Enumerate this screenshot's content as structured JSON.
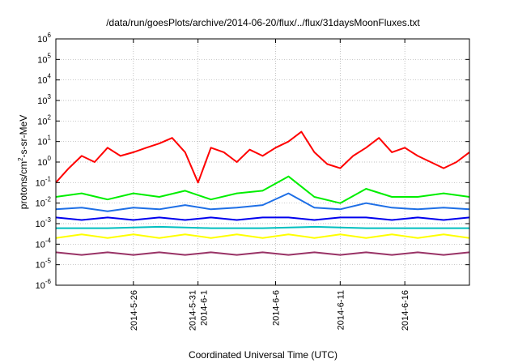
{
  "chart_data": {
    "type": "line",
    "title": "/data/run/goesPlots/archive/2014-06-20/flux/../flux/31daysMoonFluxes.txt",
    "xlabel": "Coordinated Universal Time (UTC)",
    "ylabel": "protons/cm2-s-sr-MeV",
    "ylabel_parts": [
      "protons/cm",
      "2",
      "-s-sr-MeV"
    ],
    "yscale": "log",
    "ylim": [
      1e-06,
      1000000.0
    ],
    "y_ticks": [
      {
        "base": "10",
        "exp": "-6",
        "value": -6
      },
      {
        "base": "10",
        "exp": "-5",
        "value": -5
      },
      {
        "base": "10",
        "exp": "-4",
        "value": -4
      },
      {
        "base": "10",
        "exp": "-3",
        "value": -3
      },
      {
        "base": "10",
        "exp": "-2",
        "value": -2
      },
      {
        "base": "10",
        "exp": "-1",
        "value": -1
      },
      {
        "base": "10",
        "exp": "0",
        "value": 0
      },
      {
        "base": "10",
        "exp": "1",
        "value": 1
      },
      {
        "base": "10",
        "exp": "2",
        "value": 2
      },
      {
        "base": "10",
        "exp": "3",
        "value": 3
      },
      {
        "base": "10",
        "exp": "4",
        "value": 4
      },
      {
        "base": "10",
        "exp": "5",
        "value": 5
      },
      {
        "base": "10",
        "exp": "6",
        "value": 6
      }
    ],
    "xlim": [
      "2014-05-20",
      "2014-06-21"
    ],
    "x_ticks": [
      {
        "date": "2014-05-26",
        "labels": [
          "2014-5-26"
        ]
      },
      {
        "date": "2014-05-31",
        "labels": [
          "2014-5-31",
          "2014-6-1"
        ]
      },
      {
        "date": "2014-06-06",
        "labels": [
          "2014-6-6"
        ]
      },
      {
        "date": "2014-06-11",
        "labels": [
          "2014-6-11"
        ]
      },
      {
        "date": "2014-06-16",
        "labels": [
          "2014-6-16"
        ]
      }
    ],
    "grid": true,
    "series": [
      {
        "color": "#ff0000",
        "x": [
          "2014-05-20",
          "2014-05-21",
          "2014-05-22",
          "2014-05-23",
          "2014-05-24",
          "2014-05-25",
          "2014-05-26",
          "2014-05-27",
          "2014-05-28",
          "2014-05-29",
          "2014-05-30",
          "2014-05-31",
          "2014-06-01",
          "2014-06-02",
          "2014-06-03",
          "2014-06-04",
          "2014-06-05",
          "2014-06-06",
          "2014-06-07",
          "2014-06-08",
          "2014-06-09",
          "2014-06-10",
          "2014-06-11",
          "2014-06-12",
          "2014-06-13",
          "2014-06-14",
          "2014-06-15",
          "2014-06-16",
          "2014-06-17",
          "2014-06-18",
          "2014-06-19",
          "2014-06-20",
          "2014-06-21"
        ],
        "values": [
          0.1,
          0.5,
          2,
          1,
          5,
          2,
          3,
          5,
          8,
          15,
          3,
          0.1,
          5,
          3,
          1,
          4,
          2,
          5,
          10,
          30,
          3,
          0.8,
          0.5,
          2,
          5,
          15,
          3,
          5,
          2,
          1,
          0.5,
          1,
          3
        ]
      },
      {
        "color": "#00ee00",
        "x": [
          "2014-05-20",
          "2014-05-22",
          "2014-05-24",
          "2014-05-26",
          "2014-05-28",
          "2014-05-30",
          "2014-06-01",
          "2014-06-03",
          "2014-06-05",
          "2014-06-07",
          "2014-06-09",
          "2014-06-11",
          "2014-06-13",
          "2014-06-15",
          "2014-06-17",
          "2014-06-19",
          "2014-06-21"
        ],
        "values": [
          0.02,
          0.03,
          0.015,
          0.03,
          0.02,
          0.04,
          0.015,
          0.03,
          0.04,
          0.2,
          0.02,
          0.01,
          0.05,
          0.02,
          0.02,
          0.03,
          0.02
        ]
      },
      {
        "color": "#1e6fe6",
        "x": [
          "2014-05-20",
          "2014-05-22",
          "2014-05-24",
          "2014-05-26",
          "2014-05-28",
          "2014-05-30",
          "2014-06-01",
          "2014-06-03",
          "2014-06-05",
          "2014-06-07",
          "2014-06-09",
          "2014-06-11",
          "2014-06-13",
          "2014-06-15",
          "2014-06-17",
          "2014-06-19",
          "2014-06-21"
        ],
        "values": [
          0.005,
          0.006,
          0.004,
          0.006,
          0.005,
          0.008,
          0.005,
          0.006,
          0.008,
          0.03,
          0.006,
          0.005,
          0.01,
          0.006,
          0.005,
          0.006,
          0.005
        ]
      },
      {
        "color": "#0000ee",
        "x": [
          "2014-05-20",
          "2014-05-22",
          "2014-05-24",
          "2014-05-26",
          "2014-05-28",
          "2014-05-30",
          "2014-06-01",
          "2014-06-03",
          "2014-06-05",
          "2014-06-07",
          "2014-06-09",
          "2014-06-11",
          "2014-06-13",
          "2014-06-15",
          "2014-06-17",
          "2014-06-19",
          "2014-06-21"
        ],
        "values": [
          0.002,
          0.0015,
          0.002,
          0.0015,
          0.002,
          0.0015,
          0.002,
          0.0015,
          0.002,
          0.002,
          0.0015,
          0.002,
          0.002,
          0.0015,
          0.002,
          0.0015,
          0.002
        ]
      },
      {
        "color": "#00bfbf",
        "x": [
          "2014-05-20",
          "2014-05-24",
          "2014-05-28",
          "2014-06-01",
          "2014-06-05",
          "2014-06-09",
          "2014-06-13",
          "2014-06-17",
          "2014-06-21"
        ],
        "values": [
          0.0006,
          0.0006,
          0.0007,
          0.0006,
          0.0006,
          0.0007,
          0.0006,
          0.0006,
          0.0006
        ]
      },
      {
        "color": "#ffff00",
        "x": [
          "2014-05-20",
          "2014-05-22",
          "2014-05-24",
          "2014-05-26",
          "2014-05-28",
          "2014-05-30",
          "2014-06-01",
          "2014-06-03",
          "2014-06-05",
          "2014-06-07",
          "2014-06-09",
          "2014-06-11",
          "2014-06-13",
          "2014-06-15",
          "2014-06-17",
          "2014-06-19",
          "2014-06-21"
        ],
        "values": [
          0.0002,
          0.0003,
          0.0002,
          0.0003,
          0.0002,
          0.0003,
          0.0002,
          0.0003,
          0.0002,
          0.0003,
          0.0002,
          0.0003,
          0.0002,
          0.0003,
          0.0002,
          0.0003,
          0.0002
        ]
      },
      {
        "color": "#993366",
        "x": [
          "2014-05-20",
          "2014-05-22",
          "2014-05-24",
          "2014-05-26",
          "2014-05-28",
          "2014-05-30",
          "2014-06-01",
          "2014-06-03",
          "2014-06-05",
          "2014-06-07",
          "2014-06-09",
          "2014-06-11",
          "2014-06-13",
          "2014-06-15",
          "2014-06-17",
          "2014-06-19",
          "2014-06-21"
        ],
        "values": [
          4e-05,
          3e-05,
          4e-05,
          3e-05,
          4e-05,
          3e-05,
          4e-05,
          3e-05,
          4e-05,
          3e-05,
          4e-05,
          3e-05,
          4e-05,
          3e-05,
          4e-05,
          3e-05,
          4e-05
        ]
      }
    ]
  }
}
